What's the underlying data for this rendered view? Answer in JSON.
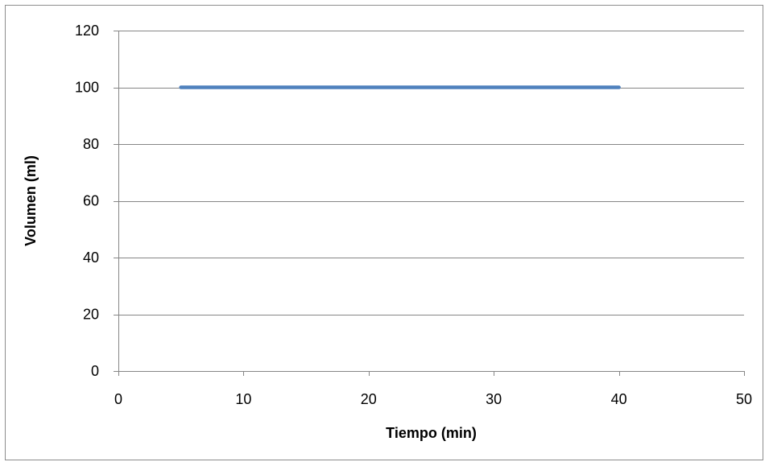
{
  "chart_data": {
    "type": "line",
    "title": "",
    "xlabel": "Tiempo (min)",
    "ylabel": "Volumen (ml)",
    "xlim": [
      0,
      50
    ],
    "ylim": [
      0,
      120
    ],
    "x_ticks": [
      0,
      10,
      20,
      30,
      40,
      50
    ],
    "y_ticks": [
      0,
      20,
      40,
      60,
      80,
      100,
      120
    ],
    "grid": "horizontal",
    "legend": "none",
    "series": [
      {
        "color": "#4F81BD",
        "x": [
          5,
          40
        ],
        "y": [
          100,
          100
        ]
      }
    ],
    "gridline_color": "#868686",
    "axis_color": "#868686"
  }
}
